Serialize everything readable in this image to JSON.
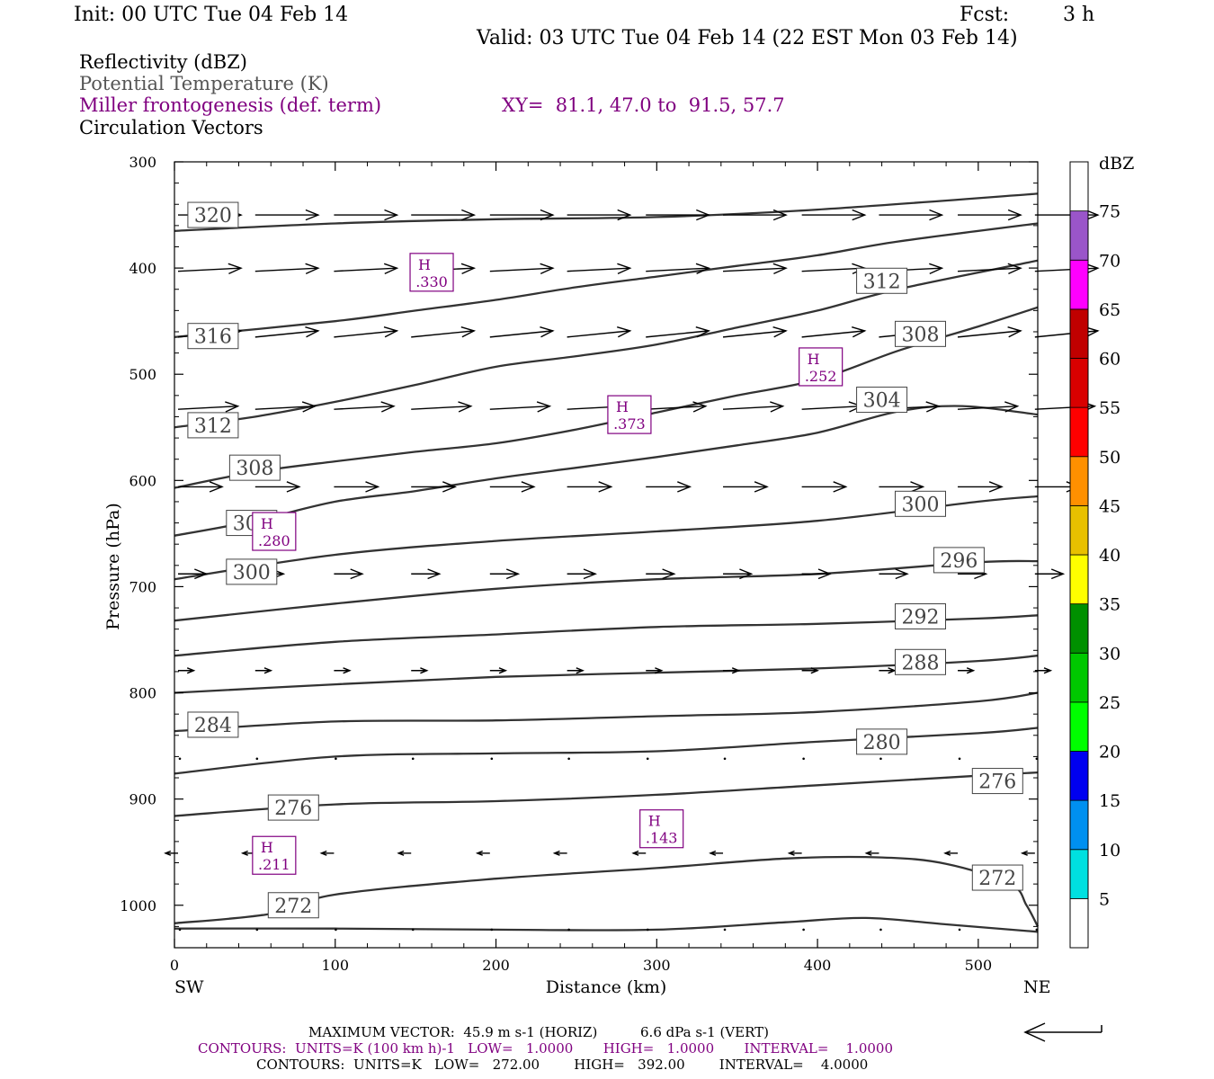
{
  "header": {
    "init": "Init: 00 UTC Tue 04 Feb 14",
    "fcst_label": "Fcst:",
    "fcst_value": "3 h",
    "valid": "Valid: 03 UTC Tue 04 Feb 14 (22 EST Mon 03 Feb 14)"
  },
  "fields": {
    "reflectivity": "Reflectivity (dBZ)",
    "theta": "Potential Temperature (K)",
    "frontogenesis": "Miller frontogenesis (def. term)",
    "xy": "XY=  81.1, 47.0 to  91.5, 57.7",
    "vectors": "Circulation Vectors"
  },
  "colors": {
    "purple": "#800080",
    "theta_line": "#333333",
    "ref_line": "#000000"
  },
  "colorbar": {
    "title": "dBZ",
    "labels": [
      "5",
      "10",
      "15",
      "20",
      "25",
      "30",
      "35",
      "40",
      "45",
      "50",
      "55",
      "60",
      "65",
      "70",
      "75"
    ],
    "colors": [
      "#00e0e0",
      "#0090f0",
      "#0000f0",
      "#00ff00",
      "#00c800",
      "#009000",
      "#ffff00",
      "#e8c000",
      "#ff9000",
      "#ff0000",
      "#d80000",
      "#c00000",
      "#ff00ff",
      "#9a55c9",
      "#ffffff"
    ]
  },
  "chart_data": {
    "type": "cross-section",
    "xlabel": "Distance (km)",
    "ylabel": "Pressure (hPa)",
    "xlim": [
      0,
      537
    ],
    "ylim": [
      1040,
      300
    ],
    "x_ticks": [
      "0",
      "100",
      "200",
      "300",
      "400",
      "500"
    ],
    "y_ticks": [
      "300",
      "400",
      "500",
      "600",
      "700",
      "800",
      "900",
      "1000"
    ],
    "x_end_labels": {
      "left": "SW",
      "right": "NE"
    },
    "theta_contours": [
      {
        "level": 320,
        "label": "320",
        "points": [
          [
            0,
            365
          ],
          [
            100,
            358
          ],
          [
            200,
            354
          ],
          [
            300,
            352
          ],
          [
            400,
            345
          ],
          [
            537,
            330
          ]
        ],
        "label_at": [
          24,
          350
        ]
      },
      {
        "level": 316,
        "label": "316",
        "points": [
          [
            0,
            465
          ],
          [
            100,
            450
          ],
          [
            150,
            440
          ],
          [
            200,
            430
          ],
          [
            250,
            418
          ],
          [
            300,
            408
          ],
          [
            350,
            398
          ],
          [
            400,
            388
          ],
          [
            450,
            375
          ],
          [
            537,
            358
          ]
        ],
        "label_at": [
          24,
          464
        ]
      },
      {
        "level": 312,
        "label": "312",
        "points": [
          [
            0,
            550
          ],
          [
            50,
            540
          ],
          [
            100,
            526
          ],
          [
            150,
            510
          ],
          [
            200,
            493
          ],
          [
            250,
            483
          ],
          [
            300,
            472
          ],
          [
            350,
            456
          ],
          [
            400,
            440
          ],
          [
            450,
            420
          ],
          [
            537,
            393
          ]
        ],
        "label_at": [
          24,
          548
        ],
        "label2": "312",
        "label2_at": [
          440,
          412
        ]
      },
      {
        "level": 308,
        "label": "308",
        "points": [
          [
            0,
            607
          ],
          [
            50,
            592
          ],
          [
            100,
            582
          ],
          [
            150,
            573
          ],
          [
            200,
            565
          ],
          [
            250,
            552
          ],
          [
            300,
            536
          ],
          [
            350,
            520
          ],
          [
            400,
            505
          ],
          [
            450,
            478
          ],
          [
            500,
            455
          ],
          [
            537,
            437
          ]
        ],
        "label_at": [
          50,
          588
        ],
        "label2": "308",
        "label2_at": [
          464,
          462
        ]
      },
      {
        "level": 304,
        "label": "304",
        "points": [
          [
            0,
            652
          ],
          [
            50,
            638
          ],
          [
            100,
            620
          ],
          [
            150,
            610
          ],
          [
            200,
            598
          ],
          [
            250,
            588
          ],
          [
            300,
            578
          ],
          [
            350,
            567
          ],
          [
            400,
            555
          ],
          [
            450,
            535
          ],
          [
            490,
            530
          ],
          [
            537,
            538
          ]
        ],
        "label_at": [
          48,
          640
        ],
        "label2": "304",
        "label2_at": [
          440,
          524
        ]
      },
      {
        "level": 300,
        "label": "300",
        "points": [
          [
            0,
            693
          ],
          [
            100,
            670
          ],
          [
            200,
            657
          ],
          [
            300,
            648
          ],
          [
            400,
            638
          ],
          [
            500,
            620
          ],
          [
            537,
            615
          ]
        ],
        "label_at": [
          48,
          686
        ],
        "label2": "300",
        "label2_at": [
          464,
          622
        ]
      },
      {
        "level": 296,
        "label": "296",
        "points": [
          [
            0,
            732
          ],
          [
            100,
            716
          ],
          [
            200,
            702
          ],
          [
            300,
            693
          ],
          [
            400,
            688
          ],
          [
            500,
            677
          ],
          [
            537,
            676
          ]
        ],
        "label_at": [
          488,
          675
        ]
      },
      {
        "level": 292,
        "label": "292",
        "points": [
          [
            0,
            765
          ],
          [
            100,
            752
          ],
          [
            200,
            745
          ],
          [
            300,
            738
          ],
          [
            400,
            735
          ],
          [
            500,
            730
          ],
          [
            537,
            727
          ]
        ],
        "label_at": [
          464,
          728
        ]
      },
      {
        "level": 288,
        "label": "288",
        "points": [
          [
            0,
            800
          ],
          [
            100,
            792
          ],
          [
            200,
            785
          ],
          [
            300,
            781
          ],
          [
            400,
            777
          ],
          [
            500,
            770
          ],
          [
            537,
            765
          ]
        ],
        "label_at": [
          464,
          771
        ]
      },
      {
        "level": 284,
        "label": "284",
        "points": [
          [
            0,
            836
          ],
          [
            100,
            827
          ],
          [
            200,
            826
          ],
          [
            300,
            822
          ],
          [
            400,
            818
          ],
          [
            500,
            808
          ],
          [
            537,
            800
          ]
        ],
        "label_at": [
          24,
          830
        ]
      },
      {
        "level": 280,
        "label": "280",
        "points": [
          [
            0,
            876
          ],
          [
            100,
            860
          ],
          [
            200,
            857
          ],
          [
            300,
            855
          ],
          [
            400,
            846
          ],
          [
            500,
            838
          ],
          [
            537,
            833
          ]
        ],
        "label_at": [
          440,
          846
        ]
      },
      {
        "level": 276,
        "label": "276",
        "points": [
          [
            0,
            916
          ],
          [
            100,
            905
          ],
          [
            200,
            902
          ],
          [
            300,
            896
          ],
          [
            400,
            887
          ],
          [
            500,
            878
          ],
          [
            537,
            875
          ]
        ],
        "label_at": [
          74,
          908
        ],
        "label2": "276",
        "label2_at": [
          512,
          883
        ]
      },
      {
        "level": 272,
        "label": "272",
        "points": [
          [
            0,
            1017
          ],
          [
            60,
            1008
          ],
          [
            100,
            990
          ],
          [
            200,
            975
          ],
          [
            300,
            965
          ],
          [
            380,
            956
          ],
          [
            440,
            955
          ],
          [
            480,
            961
          ],
          [
            520,
            980
          ],
          [
            530,
            1000
          ],
          [
            537,
            1020
          ]
        ],
        "label_at": [
          74,
          1000
        ],
        "label2": "272",
        "label2_at": [
          512,
          974
        ]
      },
      {
        "level": 268,
        "label": "",
        "points": [
          [
            0,
            1022
          ],
          [
            100,
            1022
          ],
          [
            200,
            1023
          ],
          [
            300,
            1023
          ],
          [
            380,
            1016
          ],
          [
            430,
            1012
          ],
          [
            480,
            1018
          ],
          [
            537,
            1025
          ]
        ]
      }
    ],
    "frontogenesis_highs": [
      {
        "label": "H",
        "value": ".330",
        "x": 160,
        "p": 404
      },
      {
        "label": "H",
        "value": ".252",
        "x": 402,
        "p": 493
      },
      {
        "label": "H",
        "value": ".373",
        "x": 283,
        "p": 538
      },
      {
        "label": "H",
        "value": ".280",
        "x": 62,
        "p": 648
      },
      {
        "label": "H",
        "value": ".143",
        "x": 303,
        "p": 928
      },
      {
        "label": "H",
        "value": ".211",
        "x": 62,
        "p": 953
      }
    ],
    "vector_rows": [
      {
        "p": 350,
        "u": 1.0,
        "w": 0.0
      },
      {
        "p": 403,
        "u": 1.0,
        "w": -0.05
      },
      {
        "p": 465,
        "u": 1.0,
        "w": -0.1
      },
      {
        "p": 533,
        "u": 0.95,
        "w": -0.05
      },
      {
        "p": 606,
        "u": 0.7,
        "w": 0.0
      },
      {
        "p": 688,
        "u": 0.45,
        "w": 0.0
      },
      {
        "p": 779,
        "u": 0.25,
        "w": 0.0
      },
      {
        "p": 862,
        "u": 0.0,
        "w": 0.0
      },
      {
        "p": 951,
        "u": -0.2,
        "w": 0.0
      },
      {
        "p": 1023,
        "u": 0.0,
        "w": 0.0
      }
    ],
    "vector_x": [
      0,
      48,
      97,
      145,
      194,
      242,
      291,
      339,
      388,
      436,
      485,
      533
    ]
  },
  "footer": {
    "max_vector": "MAXIMUM VECTOR:  45.9 m s-1 (HORIZ)          6.6 dPa s-1 (VERT)",
    "contours_fronto": "CONTOURS:  UNITS=K (100 km h)-1   LOW=   1.0000       HIGH=   1.0000       INTERVAL=    1.0000",
    "contours_theta": "CONTOURS:  UNITS=K   LOW=   272.00        HIGH=   392.00        INTERVAL=    4.0000"
  }
}
